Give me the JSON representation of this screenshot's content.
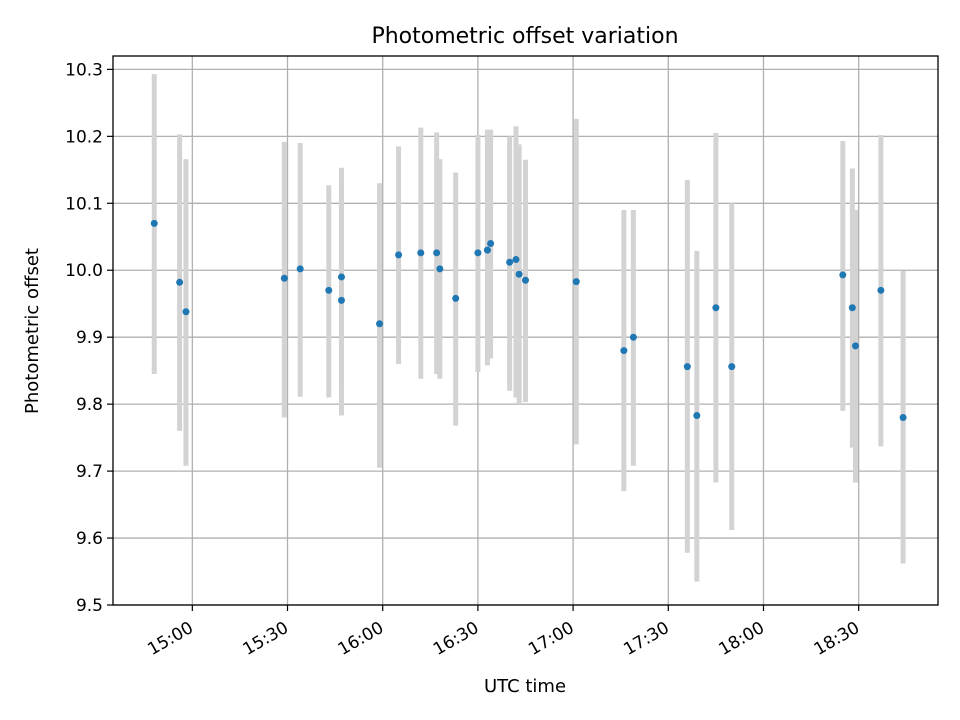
{
  "chart_data": {
    "type": "scatter",
    "title": "Photometric offset variation",
    "xlabel": "UTC time",
    "ylabel": "Photometric offset",
    "x_tick_labels": [
      "15:00",
      "15:30",
      "16:00",
      "16:30",
      "17:00",
      "17:30",
      "18:00",
      "18:30"
    ],
    "x_tick_times": [
      "15:00",
      "15:30",
      "16:00",
      "16:30",
      "17:00",
      "17:30",
      "18:00",
      "18:30"
    ],
    "xlim": [
      "14:35",
      "18:55"
    ],
    "y_tick_labels": [
      "9.5",
      "9.6",
      "9.7",
      "9.8",
      "9.9",
      "10.0",
      "10.1",
      "10.2",
      "10.3"
    ],
    "ylim": [
      9.5,
      10.32
    ],
    "grid": true,
    "colors": {
      "point": "#1f77b4",
      "errorbar": "#d3d3d3",
      "grid": "#b0b0b0",
      "axes": "#000000"
    },
    "points": [
      {
        "x": "14:48",
        "y": 10.07,
        "ylow": 9.845,
        "yhigh": 10.293
      },
      {
        "x": "14:56",
        "y": 9.982,
        "ylow": 9.76,
        "yhigh": 10.203
      },
      {
        "x": "14:58",
        "y": 9.938,
        "ylow": 9.708,
        "yhigh": 10.166
      },
      {
        "x": "15:29",
        "y": 9.988,
        "ylow": 9.78,
        "yhigh": 10.192
      },
      {
        "x": "15:34",
        "y": 10.002,
        "ylow": 9.811,
        "yhigh": 10.19
      },
      {
        "x": "15:43",
        "y": 9.97,
        "ylow": 9.81,
        "yhigh": 10.127
      },
      {
        "x": "15:47",
        "y": 9.955,
        "ylow": 9.783,
        "yhigh": 10.125
      },
      {
        "x": "15:47",
        "y": 9.99,
        "ylow": 9.828,
        "yhigh": 10.153
      },
      {
        "x": "15:59",
        "y": 9.92,
        "ylow": 9.705,
        "yhigh": 10.13
      },
      {
        "x": "16:05",
        "y": 10.023,
        "ylow": 9.86,
        "yhigh": 10.185
      },
      {
        "x": "16:12",
        "y": 10.026,
        "ylow": 9.838,
        "yhigh": 10.213
      },
      {
        "x": "16:17",
        "y": 10.026,
        "ylow": 9.845,
        "yhigh": 10.206
      },
      {
        "x": "16:18",
        "y": 10.002,
        "ylow": 9.838,
        "yhigh": 10.166
      },
      {
        "x": "16:23",
        "y": 9.958,
        "ylow": 9.768,
        "yhigh": 10.146
      },
      {
        "x": "16:30",
        "y": 10.026,
        "ylow": 9.848,
        "yhigh": 10.202
      },
      {
        "x": "16:33",
        "y": 10.03,
        "ylow": 9.858,
        "yhigh": 10.21
      },
      {
        "x": "16:34",
        "y": 10.04,
        "ylow": 9.868,
        "yhigh": 10.21
      },
      {
        "x": "16:40",
        "y": 10.012,
        "ylow": 9.82,
        "yhigh": 10.2
      },
      {
        "x": "16:42",
        "y": 10.016,
        "ylow": 9.81,
        "yhigh": 10.215
      },
      {
        "x": "16:43",
        "y": 9.994,
        "ylow": 9.8,
        "yhigh": 10.188
      },
      {
        "x": "16:45",
        "y": 9.985,
        "ylow": 9.803,
        "yhigh": 10.165
      },
      {
        "x": "17:01",
        "y": 9.983,
        "ylow": 9.74,
        "yhigh": 10.226
      },
      {
        "x": "17:16",
        "y": 9.88,
        "ylow": 9.67,
        "yhigh": 10.09
      },
      {
        "x": "17:19",
        "y": 9.9,
        "ylow": 9.708,
        "yhigh": 10.09
      },
      {
        "x": "17:36",
        "y": 9.856,
        "ylow": 9.578,
        "yhigh": 10.135
      },
      {
        "x": "17:39",
        "y": 9.783,
        "ylow": 9.535,
        "yhigh": 10.029
      },
      {
        "x": "17:45",
        "y": 9.944,
        "ylow": 9.683,
        "yhigh": 10.205
      },
      {
        "x": "17:50",
        "y": 9.856,
        "ylow": 9.612,
        "yhigh": 10.1
      },
      {
        "x": "18:25",
        "y": 9.993,
        "ylow": 9.79,
        "yhigh": 10.193
      },
      {
        "x": "18:28",
        "y": 9.944,
        "ylow": 9.735,
        "yhigh": 10.152
      },
      {
        "x": "18:29",
        "y": 9.887,
        "ylow": 9.683,
        "yhigh": 10.09
      },
      {
        "x": "18:37",
        "y": 9.97,
        "ylow": 9.737,
        "yhigh": 10.202
      },
      {
        "x": "18:44",
        "y": 9.78,
        "ylow": 9.562,
        "yhigh": 9.999
      }
    ]
  }
}
